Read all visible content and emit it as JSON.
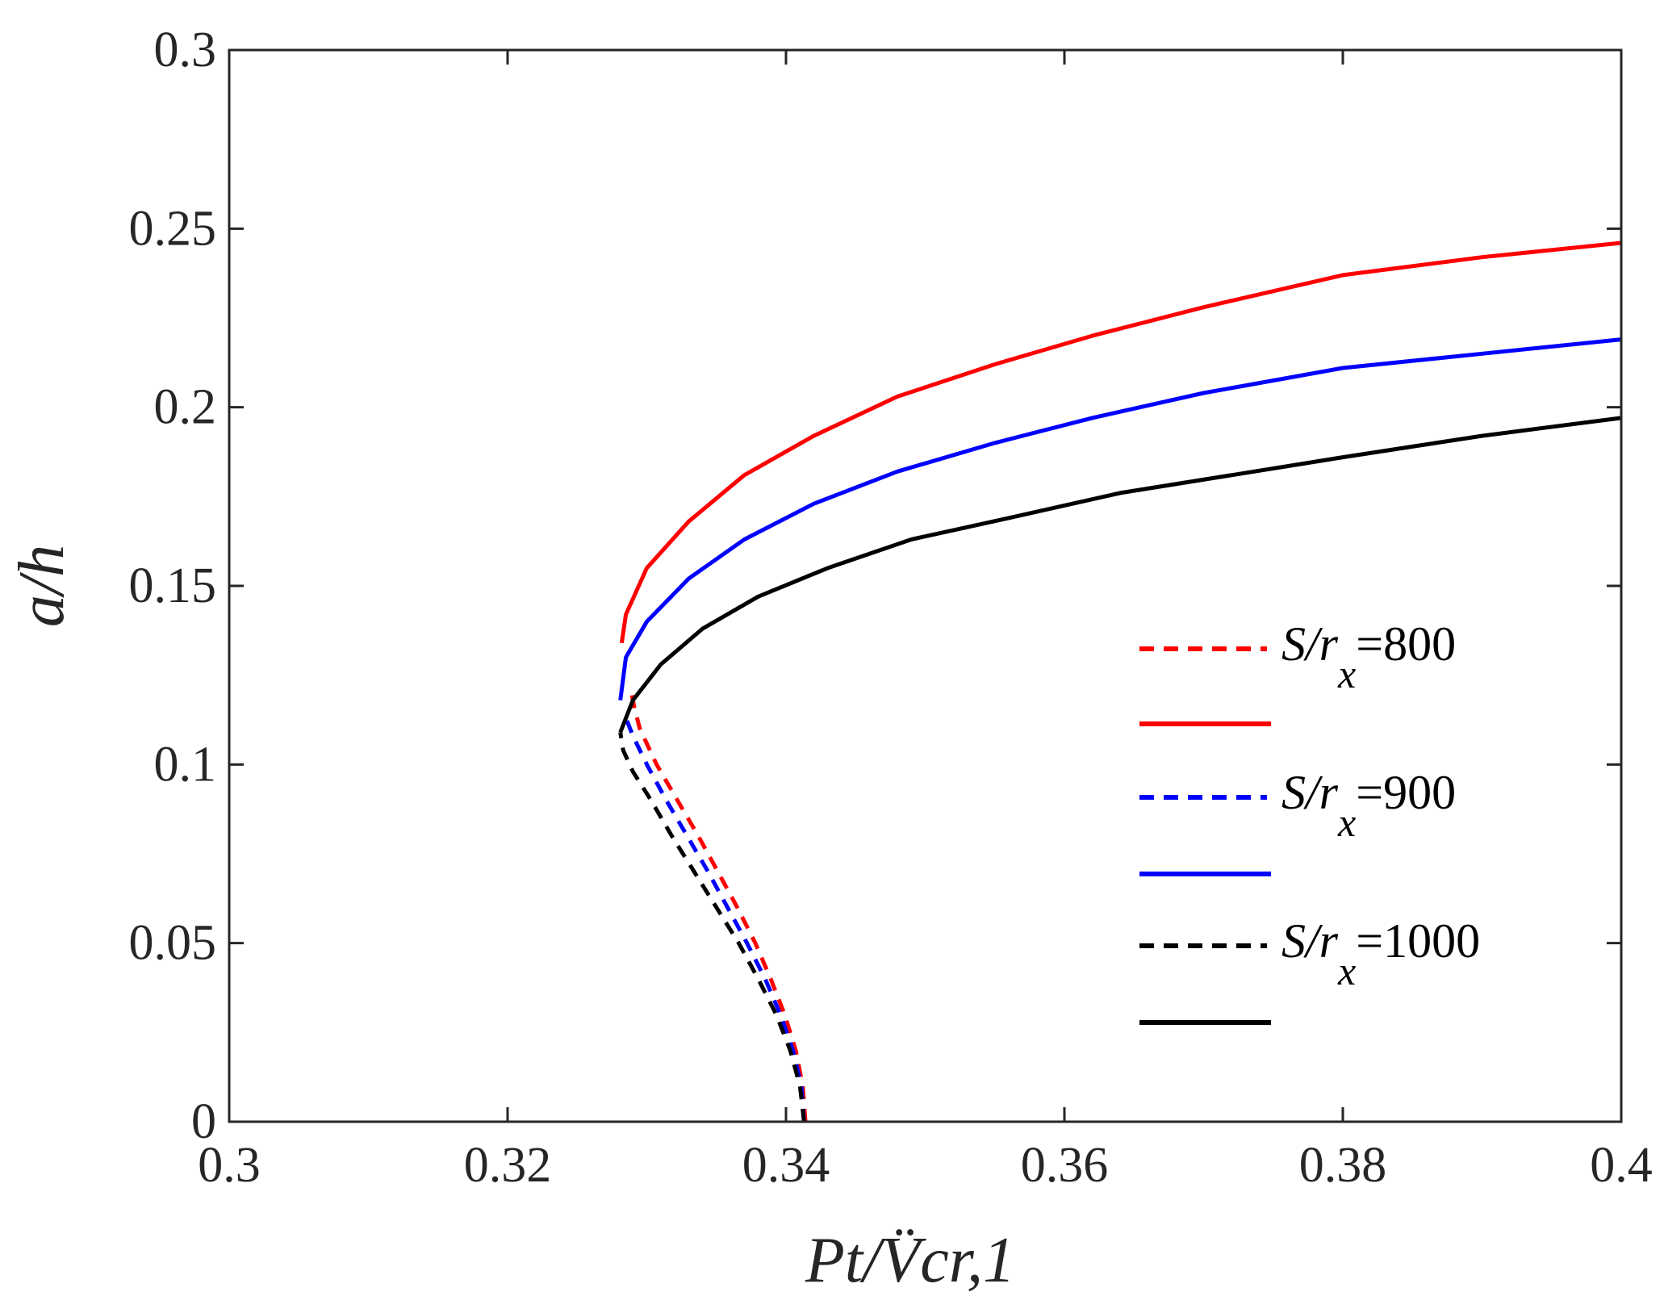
{
  "chart_data": {
    "type": "line",
    "title": "",
    "xlabel": "Pt/V̈cr,1",
    "ylabel": "a/h",
    "xlim": [
      0.3,
      0.4
    ],
    "ylim": [
      0,
      0.3
    ],
    "xticks": [
      0.3,
      0.32,
      0.34,
      0.36,
      0.38,
      0.4
    ],
    "yticks": [
      0,
      0.05,
      0.1,
      0.15,
      0.2,
      0.25,
      0.3
    ],
    "xtick_labels": [
      "0.3",
      "0.32",
      "0.34",
      "0.36",
      "0.38",
      "0.4"
    ],
    "ytick_labels": [
      "0",
      "0.05",
      "0.1",
      "0.15",
      "0.2",
      "0.25",
      "0.3"
    ],
    "grid": false,
    "legend_position": "center-right",
    "series": [
      {
        "name": "S/rx=800 (dashed)",
        "legend_label": "S/r",
        "legend_sub": "x",
        "legend_value": "=800",
        "color": "#ff0000",
        "style": "dashed",
        "points": [
          [
            0.3414,
            0.0
          ],
          [
            0.3412,
            0.01
          ],
          [
            0.3407,
            0.02
          ],
          [
            0.3399,
            0.03
          ],
          [
            0.3389,
            0.04
          ],
          [
            0.3378,
            0.05
          ],
          [
            0.3365,
            0.06
          ],
          [
            0.3351,
            0.07
          ],
          [
            0.3337,
            0.08
          ],
          [
            0.3322,
            0.09
          ],
          [
            0.3307,
            0.1
          ],
          [
            0.3295,
            0.11
          ],
          [
            0.3291,
            0.116
          ],
          [
            0.3288,
            0.122
          ]
        ]
      },
      {
        "name": "S/rx=800 (solid)",
        "color": "#ff0000",
        "style": "solid",
        "points": [
          [
            0.3282,
            0.134
          ],
          [
            0.3285,
            0.142
          ],
          [
            0.33,
            0.155
          ],
          [
            0.333,
            0.168
          ],
          [
            0.337,
            0.181
          ],
          [
            0.342,
            0.192
          ],
          [
            0.348,
            0.203
          ],
          [
            0.355,
            0.212
          ],
          [
            0.362,
            0.22
          ],
          [
            0.37,
            0.228
          ],
          [
            0.38,
            0.237
          ],
          [
            0.39,
            0.242
          ],
          [
            0.4,
            0.246
          ]
        ]
      },
      {
        "name": "S/rx=900 (dashed)",
        "legend_label": "S/r",
        "legend_sub": "x",
        "legend_value": "=900",
        "color": "#0000ff",
        "style": "dashed",
        "points": [
          [
            0.3413,
            0.0
          ],
          [
            0.3411,
            0.01
          ],
          [
            0.3405,
            0.02
          ],
          [
            0.3396,
            0.03
          ],
          [
            0.3385,
            0.04
          ],
          [
            0.3372,
            0.05
          ],
          [
            0.3358,
            0.06
          ],
          [
            0.3344,
            0.07
          ],
          [
            0.3329,
            0.08
          ],
          [
            0.3314,
            0.09
          ],
          [
            0.33,
            0.1
          ],
          [
            0.329,
            0.108
          ],
          [
            0.3285,
            0.113
          ]
        ]
      },
      {
        "name": "S/rx=900 (solid)",
        "color": "#0000ff",
        "style": "solid",
        "points": [
          [
            0.3281,
            0.118
          ],
          [
            0.3285,
            0.13
          ],
          [
            0.33,
            0.14
          ],
          [
            0.333,
            0.152
          ],
          [
            0.337,
            0.163
          ],
          [
            0.342,
            0.173
          ],
          [
            0.348,
            0.182
          ],
          [
            0.355,
            0.19
          ],
          [
            0.362,
            0.197
          ],
          [
            0.37,
            0.204
          ],
          [
            0.38,
            0.211
          ],
          [
            0.39,
            0.215
          ],
          [
            0.4,
            0.219
          ]
        ]
      },
      {
        "name": "S/rx=1000 (dashed)",
        "legend_label": "S/r",
        "legend_sub": "x",
        "legend_value": "=1000",
        "color": "#000000",
        "style": "dashed",
        "points": [
          [
            0.3413,
            0.0
          ],
          [
            0.341,
            0.01
          ],
          [
            0.3403,
            0.02
          ],
          [
            0.3393,
            0.03
          ],
          [
            0.338,
            0.04
          ],
          [
            0.3366,
            0.05
          ],
          [
            0.335,
            0.06
          ],
          [
            0.3334,
            0.07
          ],
          [
            0.3318,
            0.08
          ],
          [
            0.3303,
            0.09
          ],
          [
            0.329,
            0.098
          ],
          [
            0.3283,
            0.104
          ],
          [
            0.3281,
            0.109
          ]
        ]
      },
      {
        "name": "S/rx=1000 (solid)",
        "color": "#000000",
        "style": "solid",
        "points": [
          [
            0.3281,
            0.109
          ],
          [
            0.329,
            0.118
          ],
          [
            0.331,
            0.128
          ],
          [
            0.334,
            0.138
          ],
          [
            0.338,
            0.147
          ],
          [
            0.343,
            0.155
          ],
          [
            0.349,
            0.163
          ],
          [
            0.356,
            0.169
          ],
          [
            0.364,
            0.176
          ],
          [
            0.372,
            0.181
          ],
          [
            0.38,
            0.186
          ],
          [
            0.39,
            0.192
          ],
          [
            0.4,
            0.197
          ]
        ]
      }
    ]
  }
}
